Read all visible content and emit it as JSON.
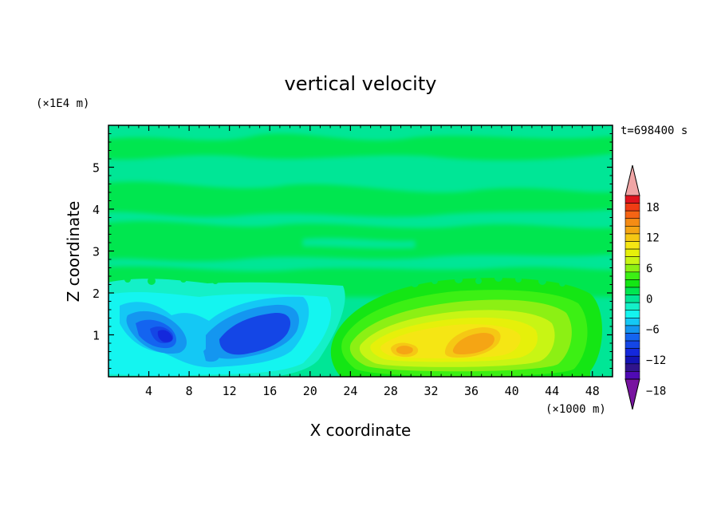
{
  "chart_data": {
    "type": "heatmap",
    "title": "vertical velocity",
    "xlabel": "X coordinate",
    "ylabel": "Z coordinate",
    "x_unit": "(×1000 m)",
    "y_unit": "(×1E4 m)",
    "time_label": "t=698400 s",
    "xlim": [
      0,
      50
    ],
    "ylim": [
      0,
      6
    ],
    "x_ticks": [
      4,
      8,
      12,
      16,
      20,
      24,
      28,
      32,
      36,
      40,
      44,
      48
    ],
    "y_ticks": [
      1,
      2,
      3,
      4,
      5
    ],
    "colorbar": {
      "levels": [
        -21,
        -19.5,
        -18,
        -16.5,
        -15,
        -13.5,
        -12,
        -10.5,
        -9,
        -7.5,
        -6,
        -4.5,
        -3,
        -1.5,
        0,
        1.5,
        3,
        4.5,
        6,
        7.5,
        9,
        10.5,
        12,
        13.5,
        15,
        16.5,
        18,
        19.5,
        21
      ],
      "colors": [
        "#f0a5a5",
        "#e0141e",
        "#f03c14",
        "#f56414",
        "#f58c14",
        "#f5a514",
        "#f5c814",
        "#f5e614",
        "#e6f00a",
        "#c8f514",
        "#8cf014",
        "#3cf014",
        "#14e614",
        "#00e650",
        "#00e696",
        "#14f0c8",
        "#14f5f0",
        "#14c8f5",
        "#1496f0",
        "#1464f0",
        "#1446e6",
        "#1428dc",
        "#1414b4",
        "#30148c",
        "#500ab4",
        "#7814a0"
      ],
      "tick_labels": [
        "18",
        "12",
        "6",
        "0",
        "−6",
        "−12",
        "−18"
      ],
      "tick_values": [
        18,
        12,
        6,
        0,
        -6,
        -12,
        -18
      ]
    }
  }
}
